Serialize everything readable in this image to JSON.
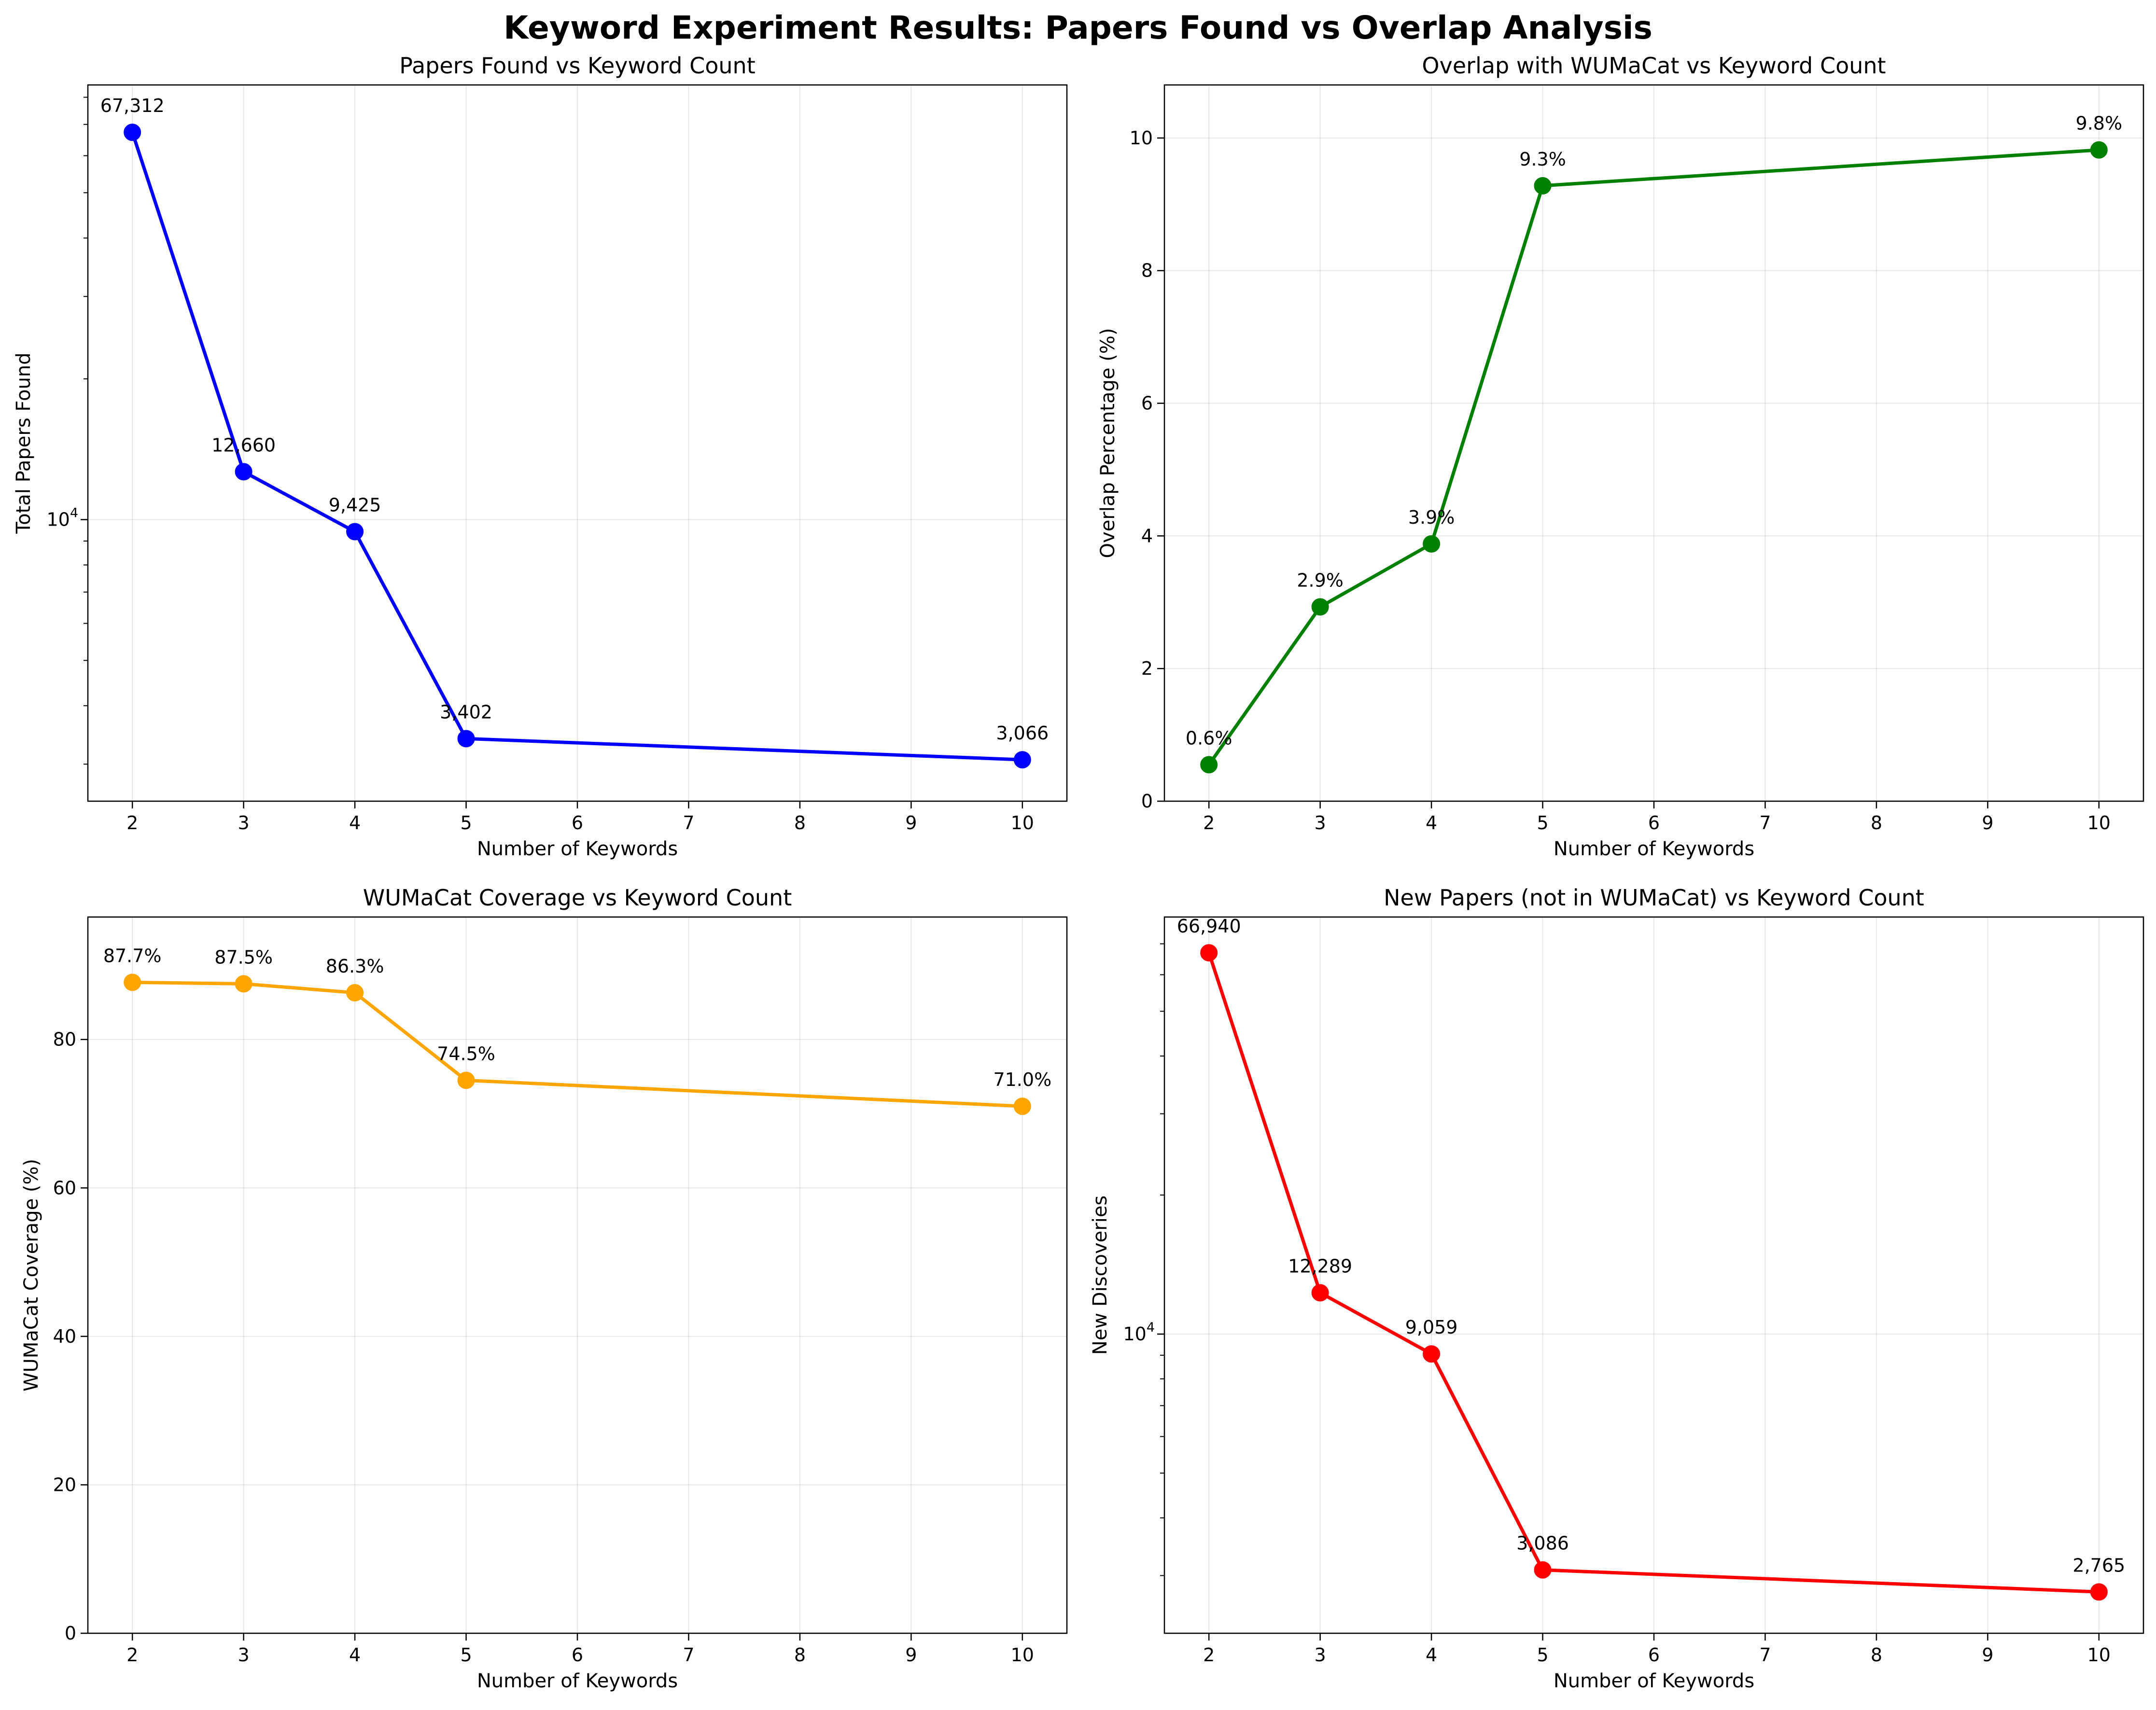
{
  "suptitle": "Keyword Experiment Results: Papers Found vs Overlap Analysis",
  "chart_data": [
    {
      "type": "line",
      "title": "Papers Found vs Keyword Count",
      "xlabel": "Number of Keywords",
      "ylabel": "Total Papers Found",
      "yscale": "log",
      "ylim": [
        2500,
        85000
      ],
      "xlim": [
        1.6,
        10.4
      ],
      "x_ticks": [
        "2",
        "3",
        "4",
        "5",
        "6",
        "7",
        "8",
        "9",
        "10"
      ],
      "y_ticks": [
        {
          "value": 10000,
          "base": "10",
          "exp": "4"
        }
      ],
      "x": [
        2,
        3,
        4,
        5,
        10
      ],
      "values": [
        67312,
        12660,
        9425,
        3402,
        3066
      ],
      "labels": [
        "67,312",
        "12,660",
        "9,425",
        "3,402",
        "3,066"
      ],
      "color": "#0000ff",
      "grid": true
    },
    {
      "type": "line",
      "title": "Overlap with WUMaCat vs Keyword Count",
      "xlabel": "Number of Keywords",
      "ylabel": "Overlap Percentage (%)",
      "yscale": "linear",
      "ylim": [
        0,
        10.8
      ],
      "xlim": [
        1.6,
        10.4
      ],
      "x_ticks": [
        "2",
        "3",
        "4",
        "5",
        "6",
        "7",
        "8",
        "9",
        "10"
      ],
      "y_ticks": [
        "0",
        "2",
        "4",
        "6",
        "8",
        "10"
      ],
      "x": [
        2,
        3,
        4,
        5,
        10
      ],
      "values": [
        0.55,
        2.93,
        3.88,
        9.28,
        9.82
      ],
      "labels": [
        "0.6%",
        "2.9%",
        "3.9%",
        "9.3%",
        "9.8%"
      ],
      "color": "#008000",
      "grid": true
    },
    {
      "type": "line",
      "title": "WUMaCat Coverage vs Keyword Count",
      "xlabel": "Number of Keywords",
      "ylabel": "WUMaCat Coverage (%)",
      "yscale": "linear",
      "ylim": [
        0,
        96.5
      ],
      "xlim": [
        1.6,
        10.4
      ],
      "x_ticks": [
        "2",
        "3",
        "4",
        "5",
        "6",
        "7",
        "8",
        "9",
        "10"
      ],
      "y_ticks": [
        "0",
        "20",
        "40",
        "60",
        "80"
      ],
      "x": [
        2,
        3,
        4,
        5,
        10
      ],
      "values": [
        87.7,
        87.5,
        86.3,
        74.5,
        71.0
      ],
      "labels": [
        "87.7%",
        "87.5%",
        "86.3%",
        "74.5%",
        "71.0%"
      ],
      "color": "#ffa500",
      "grid": true
    },
    {
      "type": "line",
      "title": "New Papers (not in WUMaCat) vs Keyword Count",
      "xlabel": "Number of Keywords",
      "ylabel": "New Discoveries",
      "yscale": "log",
      "ylim": [
        2250,
        80000
      ],
      "xlim": [
        1.6,
        10.4
      ],
      "x_ticks": [
        "2",
        "3",
        "4",
        "5",
        "6",
        "7",
        "8",
        "9",
        "10"
      ],
      "y_ticks": [
        {
          "value": 10000,
          "base": "10",
          "exp": "4"
        }
      ],
      "x": [
        2,
        3,
        4,
        5,
        10
      ],
      "values": [
        66940,
        12289,
        9059,
        3086,
        2765
      ],
      "labels": [
        "66,940",
        "12,289",
        "9,059",
        "3,086",
        "2,765"
      ],
      "color": "#ff0000",
      "grid": true
    }
  ]
}
